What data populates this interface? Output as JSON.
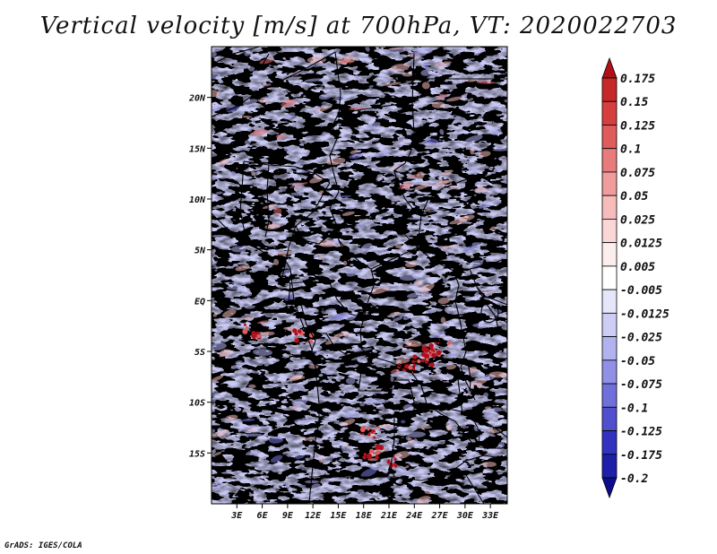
{
  "title": "Vertical velocity [m/s] at 700hPa, VT: 2020022703",
  "credit": "GrADS: IGES/COLA",
  "map": {
    "lon_range": [
      0,
      35
    ],
    "lat_range": [
      -20,
      25
    ],
    "lat_ticks": [
      {
        "lat": 20,
        "label": "20N"
      },
      {
        "lat": 15,
        "label": "15N"
      },
      {
        "lat": 10,
        "label": "10N"
      },
      {
        "lat": 5,
        "label": "5N"
      },
      {
        "lat": 0,
        "label": "EQ"
      },
      {
        "lat": -5,
        "label": "5S"
      },
      {
        "lat": -10,
        "label": "10S"
      },
      {
        "lat": -15,
        "label": "15S"
      }
    ],
    "lon_ticks": [
      {
        "lon": 3,
        "label": "3E"
      },
      {
        "lon": 6,
        "label": "6E"
      },
      {
        "lon": 9,
        "label": "9E"
      },
      {
        "lon": 12,
        "label": "12E"
      },
      {
        "lon": 15,
        "label": "15E"
      },
      {
        "lon": 18,
        "label": "18E"
      },
      {
        "lon": 21,
        "label": "21E"
      },
      {
        "lon": 24,
        "label": "24E"
      },
      {
        "lon": 27,
        "label": "27E"
      },
      {
        "lon": 30,
        "label": "30E"
      },
      {
        "lon": 33,
        "label": "33E"
      }
    ]
  },
  "colorbar": {
    "levels": [
      "0.175",
      "0.15",
      "0.125",
      "0.1",
      "0.075",
      "0.05",
      "0.025",
      "0.0125",
      "0.005",
      "-0.005",
      "-0.0125",
      "-0.025",
      "-0.05",
      "-0.075",
      "-0.1",
      "-0.125",
      "-0.175",
      "-0.2"
    ],
    "colors": [
      "#b0101a",
      "#c62828",
      "#d73f3f",
      "#e05b5b",
      "#e87b7b",
      "#f09c9c",
      "#f6bcbc",
      "#fad6d6",
      "#fdeeee",
      "#ffffff",
      "#e6e6fb",
      "#cdcdf6",
      "#b2b2f0",
      "#9090e6",
      "#7070db",
      "#5050cf",
      "#3232c0",
      "#1e1ea8",
      "#0c0c8c"
    ]
  },
  "colors": {
    "positive": "#e05b5b",
    "negative": "#5f5fd8",
    "border": "#000000"
  }
}
